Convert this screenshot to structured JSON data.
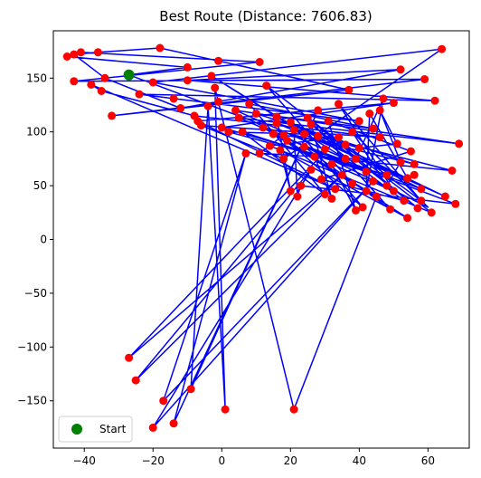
{
  "chart_data": {
    "type": "scatter",
    "title": "Best Route (Distance: 7606.83)",
    "xlabel": "",
    "ylabel": "",
    "xlim": [
      -49,
      72
    ],
    "ylim": [
      -194,
      194
    ],
    "xticks": [
      -40,
      -20,
      0,
      20,
      40,
      60
    ],
    "yticks": [
      -150,
      -100,
      -50,
      0,
      50,
      100,
      150
    ],
    "grid": false,
    "legend": {
      "position": "lower-left",
      "entries": [
        "Start"
      ]
    },
    "colors": {
      "route": "#0000ff",
      "city": "#ff0000",
      "start": "#008000"
    },
    "start": [
      -27,
      153
    ],
    "series": [
      {
        "name": "Start",
        "points": [
          [
            -27,
            153
          ]
        ]
      }
    ],
    "cities": [
      [
        -45,
        170
      ],
      [
        -43,
        172
      ],
      [
        -41,
        174
      ],
      [
        -36,
        174
      ],
      [
        -18,
        178
      ],
      [
        -1,
        166
      ],
      [
        11,
        165
      ],
      [
        -43,
        147
      ],
      [
        -38,
        144
      ],
      [
        -35,
        138
      ],
      [
        -34,
        150
      ],
      [
        -32,
        115
      ],
      [
        -24,
        135
      ],
      [
        -20,
        146
      ],
      [
        -14,
        131
      ],
      [
        -12,
        122
      ],
      [
        -10,
        148
      ],
      [
        -10,
        160
      ],
      [
        -8,
        115
      ],
      [
        -7,
        110
      ],
      [
        -6,
        106
      ],
      [
        -4,
        124
      ],
      [
        -3,
        152
      ],
      [
        -2,
        141
      ],
      [
        -1,
        128
      ],
      [
        0,
        104
      ],
      [
        2,
        100
      ],
      [
        4,
        120
      ],
      [
        5,
        113
      ],
      [
        6,
        100
      ],
      [
        7,
        80
      ],
      [
        8,
        126
      ],
      [
        10,
        117
      ],
      [
        11,
        80
      ],
      [
        12,
        104
      ],
      [
        13,
        143
      ],
      [
        14,
        87
      ],
      [
        15,
        98
      ],
      [
        16,
        114
      ],
      [
        17,
        83
      ],
      [
        18,
        75
      ],
      [
        19,
        92
      ],
      [
        20,
        109
      ],
      [
        20,
        45
      ],
      [
        21,
        102
      ],
      [
        22,
        40
      ],
      [
        23,
        50
      ],
      [
        24,
        86
      ],
      [
        25,
        113
      ],
      [
        26,
        65
      ],
      [
        27,
        77
      ],
      [
        28,
        96
      ],
      [
        29,
        56
      ],
      [
        30,
        84
      ],
      [
        31,
        110
      ],
      [
        32,
        70
      ],
      [
        33,
        47
      ],
      [
        34,
        126
      ],
      [
        35,
        60
      ],
      [
        36,
        88
      ],
      [
        37,
        139
      ],
      [
        38,
        52
      ],
      [
        39,
        27
      ],
      [
        39,
        75
      ],
      [
        40,
        110
      ],
      [
        41,
        30
      ],
      [
        42,
        45
      ],
      [
        43,
        117
      ],
      [
        44,
        54
      ],
      [
        45,
        40
      ],
      [
        46,
        95
      ],
      [
        47,
        131
      ],
      [
        48,
        60
      ],
      [
        49,
        28
      ],
      [
        50,
        127
      ],
      [
        51,
        89
      ],
      [
        52,
        158
      ],
      [
        53,
        36
      ],
      [
        54,
        20
      ],
      [
        55,
        82
      ],
      [
        56,
        60
      ],
      [
        57,
        29
      ],
      [
        58,
        47
      ],
      [
        59,
        149
      ],
      [
        61,
        25
      ],
      [
        62,
        129
      ],
      [
        64,
        177
      ],
      [
        65,
        40
      ],
      [
        67,
        64
      ],
      [
        68,
        33
      ],
      [
        69,
        89
      ],
      [
        -27,
        -110
      ],
      [
        -25,
        -131
      ],
      [
        -20,
        -175
      ],
      [
        -17,
        -150
      ],
      [
        -14,
        -171
      ],
      [
        -9,
        -139
      ],
      [
        1,
        -158
      ],
      [
        21,
        -158
      ],
      [
        30,
        42
      ],
      [
        34,
        95
      ],
      [
        28,
        120
      ],
      [
        36,
        75
      ],
      [
        44,
        103
      ],
      [
        52,
        72
      ],
      [
        38,
        100
      ],
      [
        24,
        98
      ],
      [
        16,
        108
      ],
      [
        42,
        63
      ],
      [
        50,
        45
      ],
      [
        56,
        70
      ],
      [
        46,
        120
      ],
      [
        32,
        38
      ],
      [
        26,
        107
      ],
      [
        18,
        97
      ],
      [
        40,
        85
      ],
      [
        58,
        36
      ],
      [
        48,
        50
      ],
      [
        54,
        57
      ]
    ],
    "route": [
      [
        -27,
        153
      ],
      [
        -10,
        160
      ],
      [
        -45,
        170
      ],
      [
        -41,
        174
      ],
      [
        11,
        165
      ],
      [
        -43,
        147
      ],
      [
        59,
        149
      ],
      [
        -32,
        115
      ],
      [
        37,
        139
      ],
      [
        -1,
        166
      ],
      [
        -18,
        178
      ],
      [
        -36,
        174
      ],
      [
        -43,
        172
      ],
      [
        -34,
        150
      ],
      [
        -12,
        122
      ],
      [
        52,
        158
      ],
      [
        -10,
        148
      ],
      [
        62,
        129
      ],
      [
        -24,
        135
      ],
      [
        -14,
        131
      ],
      [
        40,
        110
      ],
      [
        -20,
        146
      ],
      [
        64,
        177
      ],
      [
        18,
        75
      ],
      [
        -6,
        106
      ],
      [
        46,
        95
      ],
      [
        -8,
        115
      ],
      [
        -35,
        138
      ],
      [
        -38,
        144
      ],
      [
        33,
        47
      ],
      [
        -7,
        110
      ],
      [
        50,
        127
      ],
      [
        0,
        104
      ],
      [
        48,
        60
      ],
      [
        2,
        100
      ],
      [
        24,
        98
      ],
      [
        -3,
        152
      ],
      [
        36,
        75
      ],
      [
        4,
        120
      ],
      [
        69,
        89
      ],
      [
        5,
        113
      ],
      [
        42,
        63
      ],
      [
        6,
        100
      ],
      [
        30,
        42
      ],
      [
        8,
        126
      ],
      [
        44,
        103
      ],
      [
        10,
        117
      ],
      [
        56,
        70
      ],
      [
        12,
        104
      ],
      [
        38,
        52
      ],
      [
        13,
        143
      ],
      [
        61,
        25
      ],
      [
        14,
        87
      ],
      [
        34,
        95
      ],
      [
        -27,
        -110
      ],
      [
        35,
        60
      ],
      [
        -25,
        -131
      ],
      [
        26,
        65
      ],
      [
        -20,
        -175
      ],
      [
        44,
        54
      ],
      [
        -17,
        -150
      ],
      [
        7,
        80
      ],
      [
        -14,
        -171
      ],
      [
        28,
        120
      ],
      [
        -9,
        -139
      ],
      [
        -4,
        124
      ],
      [
        1,
        -158
      ],
      [
        -2,
        141
      ],
      [
        21,
        -158
      ],
      [
        45,
        40
      ],
      [
        15,
        98
      ],
      [
        58,
        47
      ],
      [
        16,
        114
      ],
      [
        20,
        45
      ],
      [
        17,
        83
      ],
      [
        54,
        20
      ],
      [
        19,
        92
      ],
      [
        41,
        30
      ],
      [
        20,
        109
      ],
      [
        65,
        40
      ],
      [
        21,
        102
      ],
      [
        22,
        40
      ],
      [
        23,
        50
      ],
      [
        68,
        33
      ],
      [
        24,
        86
      ],
      [
        49,
        28
      ],
      [
        25,
        113
      ],
      [
        57,
        29
      ],
      [
        26,
        107
      ],
      [
        32,
        38
      ],
      [
        27,
        77
      ],
      [
        67,
        64
      ],
      [
        28,
        96
      ],
      [
        53,
        36
      ],
      [
        29,
        56
      ],
      [
        55,
        82
      ],
      [
        31,
        110
      ],
      [
        39,
        27
      ],
      [
        32,
        70
      ],
      [
        50,
        45
      ],
      [
        34,
        126
      ],
      [
        58,
        36
      ],
      [
        36,
        88
      ],
      [
        18,
        97
      ],
      [
        11,
        80
      ],
      [
        39,
        75
      ],
      [
        47,
        131
      ],
      [
        42,
        45
      ],
      [
        43,
        117
      ],
      [
        54,
        57
      ],
      [
        16,
        108
      ],
      [
        40,
        85
      ],
      [
        51,
        89
      ],
      [
        46,
        120
      ],
      [
        52,
        72
      ],
      [
        48,
        50
      ],
      [
        38,
        100
      ],
      [
        60,
        30
      ],
      [
        9,
        110
      ],
      [
        -27,
        153
      ]
    ]
  }
}
